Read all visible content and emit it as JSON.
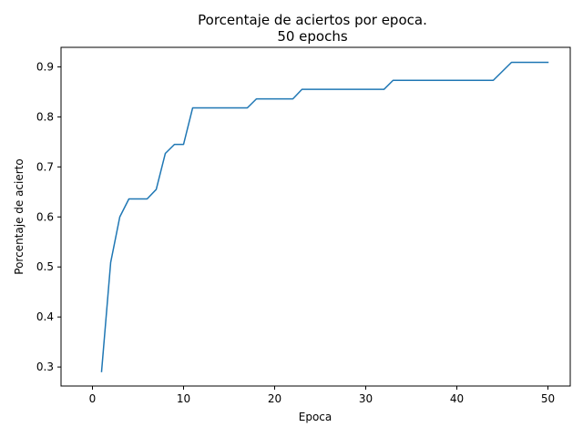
{
  "chart_data": {
    "type": "line",
    "title": "Porcentaje de aciertos por epoca.",
    "subtitle": "50 epochs",
    "xlabel": "Epoca",
    "ylabel": "Porcentaje de acierto",
    "xlim": [
      -3.45,
      52.45
    ],
    "ylim": [
      0.262,
      0.939
    ],
    "x_ticks": [
      0,
      10,
      20,
      30,
      40,
      50
    ],
    "y_ticks": [
      0.3,
      0.4,
      0.5,
      0.6,
      0.7,
      0.8,
      0.9
    ],
    "x_tick_labels": [
      "0",
      "10",
      "20",
      "30",
      "40",
      "50"
    ],
    "y_tick_labels": [
      "0.3",
      "0.4",
      "0.5",
      "0.6",
      "0.7",
      "0.8",
      "0.9"
    ],
    "grid": false,
    "series": [
      {
        "color": "#1f77b4",
        "x": [
          1,
          2,
          3,
          4,
          5,
          6,
          7,
          8,
          9,
          10,
          11,
          12,
          13,
          14,
          15,
          16,
          17,
          18,
          19,
          20,
          21,
          22,
          23,
          24,
          25,
          26,
          27,
          28,
          29,
          30,
          31,
          32,
          33,
          34,
          35,
          36,
          37,
          38,
          39,
          40,
          41,
          42,
          43,
          44,
          45,
          46,
          47,
          48,
          49,
          50
        ],
        "y": [
          0.291,
          0.509,
          0.6,
          0.636,
          0.636,
          0.636,
          0.655,
          0.727,
          0.745,
          0.745,
          0.818,
          0.818,
          0.818,
          0.818,
          0.818,
          0.818,
          0.818,
          0.836,
          0.836,
          0.836,
          0.836,
          0.836,
          0.855,
          0.855,
          0.855,
          0.855,
          0.855,
          0.855,
          0.855,
          0.855,
          0.855,
          0.855,
          0.873,
          0.873,
          0.873,
          0.873,
          0.873,
          0.873,
          0.873,
          0.873,
          0.873,
          0.873,
          0.873,
          0.873,
          0.891,
          0.909,
          0.909,
          0.909,
          0.909,
          0.909
        ]
      }
    ]
  }
}
